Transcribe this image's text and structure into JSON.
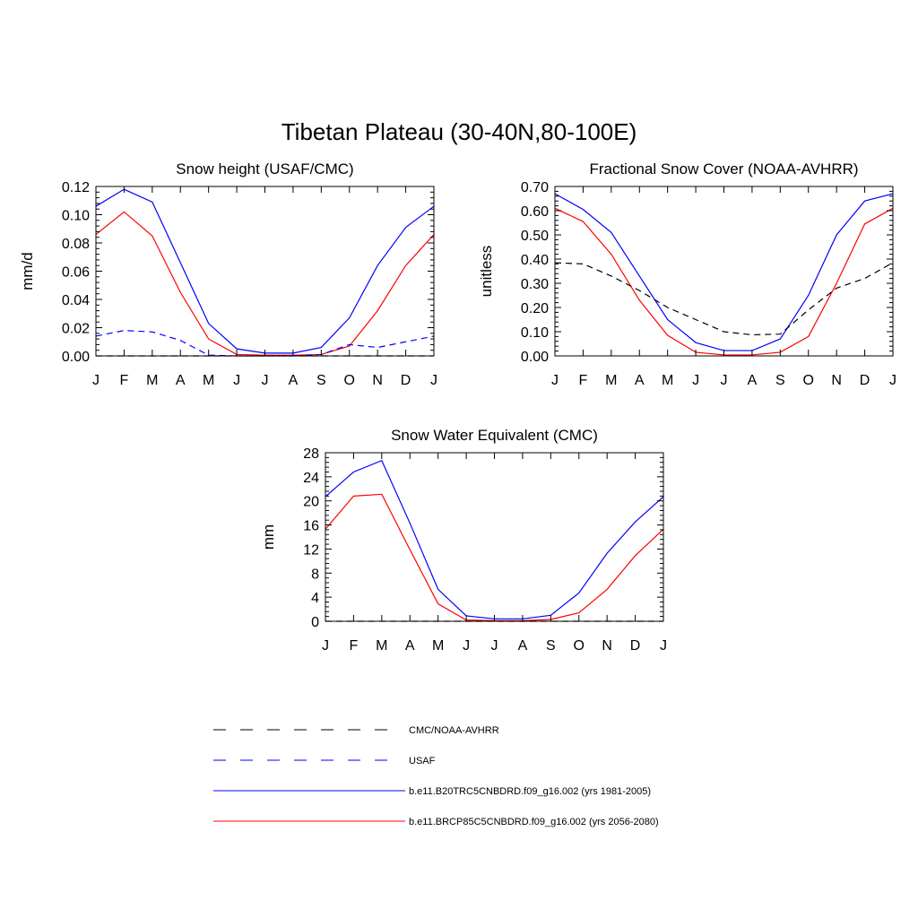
{
  "figure_title": "Tibetan Plateau (30-40N,80-100E)",
  "colors": {
    "blue": "#0000ff",
    "red": "#ff0000",
    "black": "#000000"
  },
  "legend": [
    {
      "label": "CMC/NOAA-AVHRR",
      "color": "#000000",
      "dash": "dashed"
    },
    {
      "label": "USAF",
      "color": "#0000ff",
      "dash": "dashed"
    },
    {
      "label": "b.e11.B20TRC5CNBDRD.f09_g16.002 (yrs 1981-2005)",
      "color": "#0000ff",
      "dash": "solid"
    },
    {
      "label": "b.e11.BRCP85C5CNBDRD.f09_g16.002 (yrs 2056-2080)",
      "color": "#ff0000",
      "dash": "solid"
    }
  ],
  "chart_data": [
    {
      "type": "line",
      "title": "Snow height (USAF/CMC)",
      "ylabel": "mm/d",
      "xlabel": "",
      "categories": [
        "J",
        "F",
        "M",
        "A",
        "M",
        "J",
        "J",
        "A",
        "S",
        "O",
        "N",
        "D",
        "J"
      ],
      "ylim": [
        0,
        0.12
      ],
      "yticks": [
        "0.00",
        "0.02",
        "0.04",
        "0.06",
        "0.08",
        "0.10",
        "0.12"
      ],
      "series": [
        {
          "color": "#0000ff",
          "dash": "solid",
          "values": [
            0.106,
            0.118,
            0.109,
            0.066,
            0.023,
            0.005,
            0.002,
            0.002,
            0.006,
            0.027,
            0.064,
            0.091,
            0.106
          ]
        },
        {
          "color": "#ff0000",
          "dash": "solid",
          "values": [
            0.086,
            0.102,
            0.085,
            0.045,
            0.012,
            0.001,
            0.0005,
            0.0005,
            0.001,
            0.007,
            0.032,
            0.064,
            0.086
          ]
        },
        {
          "color": "#0000ff",
          "dash": "dashed",
          "values": [
            0.014,
            0.018,
            0.017,
            0.011,
            0.0005,
            0,
            0,
            0,
            0.001,
            0.008,
            0.006,
            0.01,
            0.014
          ]
        },
        {
          "color": "#000000",
          "dash": "dashed",
          "values": [
            0,
            0,
            0,
            0,
            0,
            0,
            0,
            0,
            0,
            0,
            0,
            0,
            0
          ]
        }
      ]
    },
    {
      "type": "line",
      "title": "Fractional Snow Cover (NOAA-AVHRR)",
      "ylabel": "unitless",
      "xlabel": "",
      "categories": [
        "J",
        "F",
        "M",
        "A",
        "M",
        "J",
        "J",
        "A",
        "S",
        "O",
        "N",
        "D",
        "J"
      ],
      "ylim": [
        0,
        0.7
      ],
      "yticks": [
        "0.00",
        "0.10",
        "0.20",
        "0.30",
        "0.40",
        "0.50",
        "0.60",
        "0.70"
      ],
      "series": [
        {
          "color": "#0000ff",
          "dash": "solid",
          "values": [
            0.67,
            0.605,
            0.51,
            0.33,
            0.15,
            0.055,
            0.022,
            0.022,
            0.07,
            0.25,
            0.5,
            0.64,
            0.67
          ]
        },
        {
          "color": "#ff0000",
          "dash": "solid",
          "values": [
            0.61,
            0.555,
            0.42,
            0.23,
            0.085,
            0.015,
            0.004,
            0.004,
            0.015,
            0.08,
            0.3,
            0.545,
            0.61
          ]
        },
        {
          "color": "#000000",
          "dash": "dashed",
          "values": [
            0.385,
            0.38,
            0.33,
            0.27,
            0.2,
            0.15,
            0.1,
            0.087,
            0.09,
            0.19,
            0.28,
            0.32,
            0.385
          ]
        }
      ]
    },
    {
      "type": "line",
      "title": "Snow Water Equivalent (CMC)",
      "ylabel": "mm",
      "xlabel": "",
      "categories": [
        "J",
        "F",
        "M",
        "A",
        "M",
        "J",
        "J",
        "A",
        "S",
        "O",
        "N",
        "D",
        "J"
      ],
      "ylim": [
        0,
        28
      ],
      "yticks": [
        "0",
        "4",
        "8",
        "12",
        "16",
        "20",
        "24",
        "28"
      ],
      "series": [
        {
          "color": "#0000ff",
          "dash": "solid",
          "values": [
            20.7,
            24.8,
            26.7,
            16.3,
            5.3,
            0.9,
            0.4,
            0.4,
            1.0,
            4.7,
            11.3,
            16.5,
            20.7
          ]
        },
        {
          "color": "#ff0000",
          "dash": "solid",
          "values": [
            15.3,
            20.8,
            21.1,
            11.9,
            2.9,
            0.2,
            0.1,
            0.1,
            0.3,
            1.4,
            5.3,
            10.9,
            15.3
          ]
        },
        {
          "color": "#000000",
          "dash": "dashed",
          "values": [
            0,
            0,
            0,
            0,
            0,
            0,
            0,
            0,
            0,
            0,
            0,
            0,
            0
          ]
        }
      ]
    }
  ]
}
